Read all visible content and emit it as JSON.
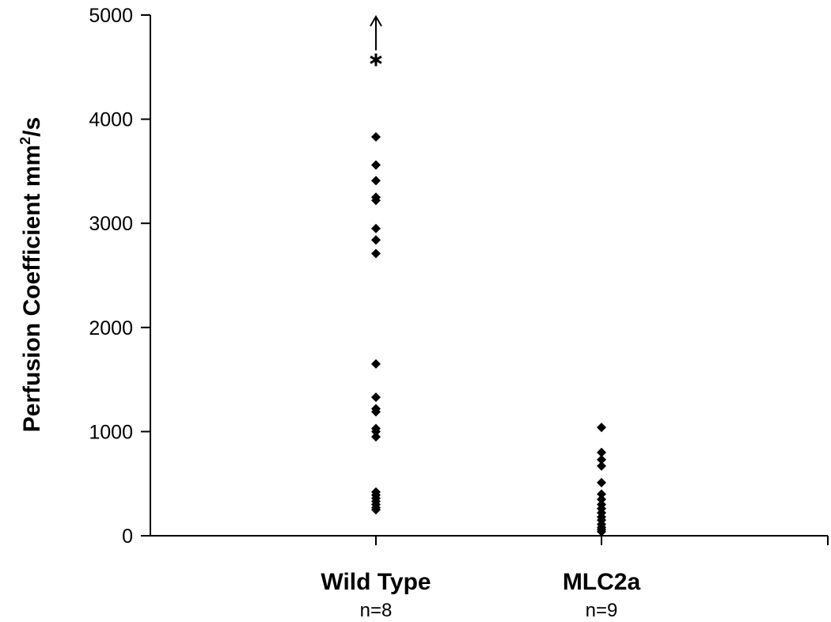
{
  "chart_data": {
    "type": "scatter",
    "title": "",
    "xlabel": "",
    "ylabel_main": "Perfusion Coefficient mm",
    "ylabel_sup": "2",
    "ylabel_tail": "/s",
    "ylim": [
      0,
      5000
    ],
    "yticks": [
      0,
      1000,
      2000,
      3000,
      4000,
      5000
    ],
    "grid": false,
    "legend": "none",
    "categories": [
      {
        "label": "Wild Type",
        "n_label": "n=8"
      },
      {
        "label": "MLC2a",
        "n_label": "n=9"
      }
    ],
    "series": [
      {
        "category": "Wild Type",
        "values": [
          3830,
          3560,
          3410,
          3250,
          3220,
          2950,
          2840,
          2710,
          1650,
          1330,
          1220,
          1190,
          1030,
          1000,
          950,
          420,
          390,
          360,
          330,
          300,
          270,
          250
        ]
      },
      {
        "category": "MLC2a",
        "values": [
          1040,
          800,
          730,
          670,
          510,
          400,
          350,
          300,
          260,
          220,
          180,
          150,
          110,
          80,
          60,
          40
        ]
      }
    ],
    "outlier": {
      "category": "Wild Type",
      "value": 4570,
      "marker": "asterisk",
      "arrow": "up"
    },
    "colors": {
      "marker": "#000000",
      "axis": "#000000"
    }
  }
}
